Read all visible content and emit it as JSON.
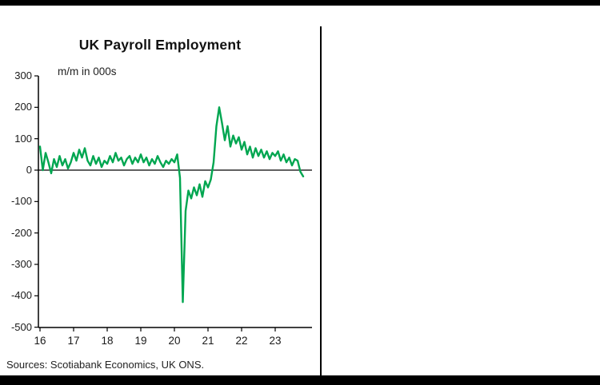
{
  "page": {
    "title": "UK Payroll Employment",
    "subtitle": "m/m in 000s",
    "sources": "Sources: Scotiabank Economics, UK ONS."
  },
  "colors": {
    "line": "#00a650",
    "axis": "#000000",
    "zero_line": "#000000"
  },
  "chart_data": {
    "type": "line",
    "title": "UK Payroll Employment",
    "units_label": "m/m in 000s",
    "x_start_year": 2016,
    "frequency": "monthly",
    "x_tick_labels": [
      "16",
      "17",
      "18",
      "19",
      "20",
      "21",
      "22",
      "23"
    ],
    "y_ticks": [
      300,
      200,
      100,
      0,
      -100,
      -200,
      -300,
      -400,
      -500
    ],
    "ylim": [
      -500,
      300
    ],
    "grid": false,
    "legend": "none",
    "series": [
      {
        "name": "UK payroll employment, m/m change (000s)",
        "values": [
          75,
          0,
          55,
          25,
          -10,
          35,
          10,
          45,
          15,
          35,
          5,
          25,
          55,
          30,
          65,
          40,
          70,
          30,
          15,
          45,
          20,
          40,
          10,
          30,
          20,
          45,
          25,
          55,
          30,
          40,
          15,
          35,
          45,
          20,
          40,
          25,
          50,
          25,
          40,
          15,
          35,
          20,
          45,
          25,
          10,
          30,
          20,
          35,
          25,
          50,
          -25,
          -420,
          -130,
          -65,
          -90,
          -55,
          -80,
          -45,
          -85,
          -35,
          -55,
          -30,
          25,
          140,
          200,
          150,
          95,
          140,
          75,
          110,
          85,
          105,
          65,
          90,
          50,
          75,
          40,
          70,
          45,
          65,
          40,
          60,
          35,
          55,
          45,
          60,
          30,
          50,
          25,
          40,
          15,
          35,
          30,
          -5,
          -20
        ]
      }
    ]
  }
}
